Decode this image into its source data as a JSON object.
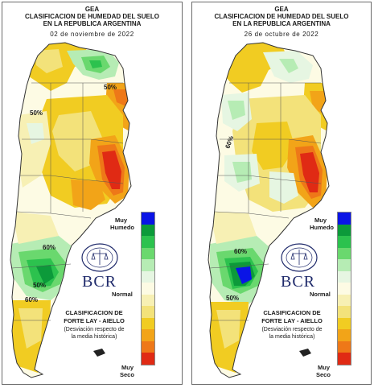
{
  "panels": [
    {
      "org": "GEA",
      "title_line1": "CLASIFICACION DE HUMEDAD DEL SUELO",
      "title_line2": "EN LA REPUBLICA ARGENTINA",
      "date": "02 de noviembre de 2022",
      "contour_labels": [
        "50%",
        "50%",
        "60%",
        "60%",
        "50%"
      ]
    },
    {
      "org": "GEA",
      "title_line1": "CLASIFICACION DE HUMEDAD DEL SUELO",
      "title_line2": "EN LA REPUBLICA ARGENTINA",
      "date": "26 de octubre de 2022",
      "contour_labels": [
        "60%",
        "60%",
        "50%"
      ]
    }
  ],
  "legend": {
    "top_label_1": "Muy",
    "top_label_2": "Humedo",
    "mid_label": "Normal",
    "bottom_label_1": "Muy",
    "bottom_label_2": "Seco",
    "colors": [
      "#0a14e6",
      "#0c9a3a",
      "#2cc24e",
      "#6ad86e",
      "#b6ecb4",
      "#e6f6e2",
      "#fdfbe4",
      "#f7f0b4",
      "#f3e27a",
      "#f1cc22",
      "#f2a418",
      "#ee7818",
      "#e02a14"
    ]
  },
  "branding": {
    "logo": "BCR",
    "seal_name": "bolsa-de-comercio-de-rosario-seal"
  },
  "classification": {
    "line1": "CLASIFICACION DE",
    "line2": "FORTE LAY - AIELLO",
    "note1": "(Desviación respecto de",
    "note2": "la media histórica)"
  }
}
